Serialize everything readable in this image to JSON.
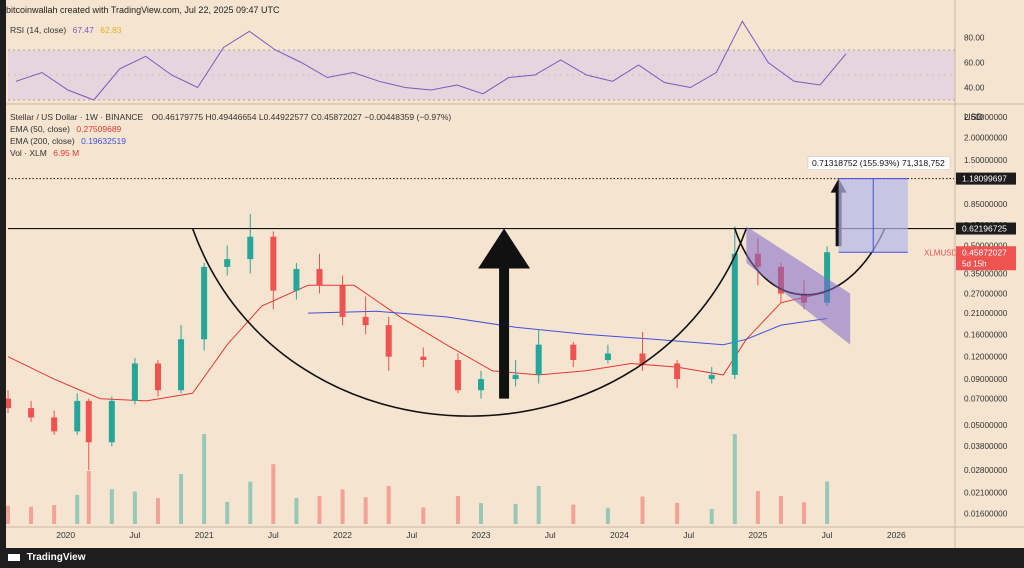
{
  "header": {
    "credit": "bitcoinwallah created with TradingView.com, Jul 22, 2025 09:47 UTC"
  },
  "rsi": {
    "label": "RSI (14, close)",
    "value1": "67.47",
    "value2": "62.83",
    "ticks": [
      "80.00",
      "60.00",
      "40.00"
    ],
    "line_color": "#7e57c2",
    "ma_color": "#f5c542"
  },
  "legend": {
    "symbol": "Stellar / US Dollar · 1W · BINANCE",
    "ohlc": "O0.46179775  H0.49446654  L0.44922577  C0.45872027  −0.00448359 (−0.97%)",
    "ema50_label": "EMA (50, close)",
    "ema50_value": "0.27509689",
    "ema200_label": "EMA (200, close)",
    "ema200_value": "0.19632519",
    "vol_label": "Vol · XLM",
    "vol_value": "6.95 M"
  },
  "price_axis": {
    "currency": "USD",
    "ticks": [
      "2.60000000",
      "2.00000000",
      "1.50000000",
      "1.15000000",
      "0.85000000",
      "0.65000000",
      "0.50000000",
      "0.35000000",
      "0.27000000",
      "0.21000000",
      "0.16000000",
      "0.12000000",
      "0.09000000",
      "0.07000000",
      "0.05000000",
      "0.03800000",
      "0.02800000",
      "0.02100000",
      "0.01600000"
    ],
    "labels": {
      "target": "1.18099697",
      "neckline": "0.62196725",
      "current_symbol": "XLMUSD",
      "current_price": "0.45872027",
      "countdown": "5d 15h"
    }
  },
  "time_axis": [
    "2020",
    "Jul",
    "2021",
    "Jul",
    "2022",
    "Jul",
    "2023",
    "Jul",
    "2024",
    "Jul",
    "2025",
    "Jul",
    "2026"
  ],
  "measure_label": "0.71318752 (155.93%) 71,318,752",
  "footer": {
    "brand": "TradingView"
  },
  "colors": {
    "bg": "#f5e4d0",
    "up": "#26a69a",
    "down": "#ef5350",
    "ema50": "#e53935",
    "ema200": "#3f51e0",
    "channel": "#7b68c8",
    "projection": "#b3b8e8",
    "target_label": "#1c1c1c",
    "current_label": "#ef5350"
  },
  "chart_data": {
    "type": "candlestick",
    "title": "Stellar / US Dollar · 1W · BINANCE",
    "y_scale": "log",
    "ylim": [
      0.014,
      3.0
    ],
    "xlim": [
      "2019-08",
      "2026-06"
    ],
    "neckline": 0.62196725,
    "target": 1.18099697,
    "current": 0.45872027,
    "series": [
      {
        "name": "EMA (50, close)",
        "x": [
          "2019-08",
          "2019-12",
          "2020-04",
          "2020-08",
          "2020-12",
          "2021-03",
          "2021-06",
          "2021-10",
          "2022-02",
          "2022-06",
          "2022-10",
          "2023-02",
          "2023-06",
          "2023-10",
          "2024-02",
          "2024-06",
          "2024-10",
          "2024-12",
          "2025-03",
          "2025-07"
        ],
        "values": [
          0.12,
          0.09,
          0.07,
          0.068,
          0.075,
          0.14,
          0.23,
          0.3,
          0.3,
          0.2,
          0.14,
          0.1,
          0.095,
          0.1,
          0.11,
          0.105,
          0.095,
          0.15,
          0.24,
          0.275
        ]
      },
      {
        "name": "EMA (200, close)",
        "x": [
          "2021-10",
          "2022-04",
          "2022-10",
          "2023-04",
          "2023-10",
          "2024-04",
          "2024-10",
          "2024-12",
          "2025-03",
          "2025-07"
        ],
        "values": [
          0.21,
          0.215,
          0.2,
          0.175,
          0.16,
          0.15,
          0.14,
          0.15,
          0.18,
          0.196
        ]
      }
    ],
    "ohlc": [
      {
        "t": "2019-08",
        "o": 0.07,
        "h": 0.078,
        "l": 0.058,
        "c": 0.062
      },
      {
        "t": "2019-10",
        "o": 0.062,
        "h": 0.068,
        "l": 0.052,
        "c": 0.055
      },
      {
        "t": "2019-12",
        "o": 0.055,
        "h": 0.06,
        "l": 0.044,
        "c": 0.046
      },
      {
        "t": "2020-02",
        "o": 0.046,
        "h": 0.075,
        "l": 0.044,
        "c": 0.068
      },
      {
        "t": "2020-03",
        "o": 0.068,
        "h": 0.07,
        "l": 0.028,
        "c": 0.04
      },
      {
        "t": "2020-05",
        "o": 0.04,
        "h": 0.072,
        "l": 0.038,
        "c": 0.068
      },
      {
        "t": "2020-07",
        "o": 0.068,
        "h": 0.118,
        "l": 0.065,
        "c": 0.11
      },
      {
        "t": "2020-09",
        "o": 0.11,
        "h": 0.115,
        "l": 0.072,
        "c": 0.078
      },
      {
        "t": "2020-11",
        "o": 0.078,
        "h": 0.18,
        "l": 0.075,
        "c": 0.15
      },
      {
        "t": "2021-01",
        "o": 0.15,
        "h": 0.4,
        "l": 0.13,
        "c": 0.38
      },
      {
        "t": "2021-03",
        "o": 0.38,
        "h": 0.5,
        "l": 0.34,
        "c": 0.42
      },
      {
        "t": "2021-05",
        "o": 0.42,
        "h": 0.75,
        "l": 0.35,
        "c": 0.56
      },
      {
        "t": "2021-07",
        "o": 0.56,
        "h": 0.6,
        "l": 0.22,
        "c": 0.28
      },
      {
        "t": "2021-09",
        "o": 0.28,
        "h": 0.4,
        "l": 0.25,
        "c": 0.37
      },
      {
        "t": "2021-11",
        "o": 0.37,
        "h": 0.45,
        "l": 0.27,
        "c": 0.3
      },
      {
        "t": "2022-01",
        "o": 0.3,
        "h": 0.34,
        "l": 0.18,
        "c": 0.2
      },
      {
        "t": "2022-03",
        "o": 0.2,
        "h": 0.26,
        "l": 0.16,
        "c": 0.18
      },
      {
        "t": "2022-05",
        "o": 0.18,
        "h": 0.2,
        "l": 0.1,
        "c": 0.12
      },
      {
        "t": "2022-08",
        "o": 0.12,
        "h": 0.135,
        "l": 0.105,
        "c": 0.115
      },
      {
        "t": "2022-11",
        "o": 0.115,
        "h": 0.125,
        "l": 0.075,
        "c": 0.078
      },
      {
        "t": "2023-01",
        "o": 0.078,
        "h": 0.1,
        "l": 0.07,
        "c": 0.09
      },
      {
        "t": "2023-04",
        "o": 0.09,
        "h": 0.115,
        "l": 0.082,
        "c": 0.095
      },
      {
        "t": "2023-06",
        "o": 0.095,
        "h": 0.17,
        "l": 0.085,
        "c": 0.14
      },
      {
        "t": "2023-09",
        "o": 0.14,
        "h": 0.145,
        "l": 0.105,
        "c": 0.115
      },
      {
        "t": "2023-12",
        "o": 0.115,
        "h": 0.14,
        "l": 0.11,
        "c": 0.125
      },
      {
        "t": "2024-03",
        "o": 0.125,
        "h": 0.165,
        "l": 0.1,
        "c": 0.11
      },
      {
        "t": "2024-06",
        "o": 0.11,
        "h": 0.115,
        "l": 0.08,
        "c": 0.09
      },
      {
        "t": "2024-09",
        "o": 0.09,
        "h": 0.105,
        "l": 0.085,
        "c": 0.095
      },
      {
        "t": "2024-11",
        "o": 0.095,
        "h": 0.64,
        "l": 0.09,
        "c": 0.45
      },
      {
        "t": "2025-01",
        "o": 0.45,
        "h": 0.55,
        "l": 0.3,
        "c": 0.38
      },
      {
        "t": "2025-03",
        "o": 0.38,
        "h": 0.4,
        "l": 0.24,
        "c": 0.27
      },
      {
        "t": "2025-05",
        "o": 0.27,
        "h": 0.32,
        "l": 0.22,
        "c": 0.24
      },
      {
        "t": "2025-07",
        "o": 0.24,
        "h": 0.494,
        "l": 0.23,
        "c": 0.459
      }
    ],
    "rsi_values": [
      45,
      52,
      38,
      30,
      55,
      65,
      50,
      40,
      72,
      85,
      70,
      60,
      48,
      52,
      45,
      40,
      38,
      42,
      35,
      48,
      50,
      62,
      50,
      45,
      58,
      44,
      40,
      52,
      93,
      60,
      45,
      42,
      67
    ]
  }
}
